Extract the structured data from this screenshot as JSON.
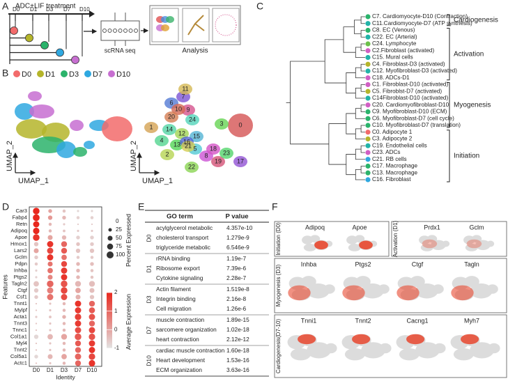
{
  "panel_labels": [
    "A",
    "B",
    "C",
    "D",
    "E",
    "F"
  ],
  "panel_a": {
    "title": "ADC+LIF treatment",
    "days": [
      {
        "label": "D0",
        "color": "#f26b6b"
      },
      {
        "label": "D1",
        "color": "#b5b52a"
      },
      {
        "label": "D3",
        "color": "#2bb36b"
      },
      {
        "label": "D7",
        "color": "#2fa8e0"
      },
      {
        "label": "D10",
        "color": "#c76fd1"
      }
    ],
    "steps": [
      "scRNA seq",
      "Analysis"
    ]
  },
  "panel_b": {
    "legend": [
      {
        "label": "D0",
        "color": "#f26b6b"
      },
      {
        "label": "D1",
        "color": "#b5b52a"
      },
      {
        "label": "D3",
        "color": "#2bb36b"
      },
      {
        "label": "D7",
        "color": "#2fa8e0"
      },
      {
        "label": "D10",
        "color": "#c76fd1"
      }
    ],
    "x_label": "UMAP_1",
    "y_label": "UMAP_2",
    "clusters": [
      "0",
      "1",
      "2",
      "3",
      "4",
      "5",
      "6",
      "7",
      "8",
      "9",
      "10",
      "11",
      "12",
      "13",
      "14",
      "15",
      "16",
      "17",
      "18",
      "19",
      "20",
      "21",
      "22",
      "23",
      "24"
    ]
  },
  "panel_c": {
    "groups": [
      {
        "label": "Cardiogenesis",
        "leaves": [
          {
            "label": "C7. Cardiomyocyte-D10 (Contraction)",
            "color": "#2bb36b"
          },
          {
            "label": "C11.Cardiomyocyte-D7 (ATP synthesis)",
            "color": "#22b3a8"
          }
        ]
      },
      {
        "label": "Activation",
        "leaves": [
          {
            "label": "C8. EC (Venous)",
            "color": "#2bb36b"
          },
          {
            "label": "C22. EC (Arterial)",
            "color": "#22b3a8"
          },
          {
            "label": "C24. Lymphocyte",
            "color": "#6cc04a"
          },
          {
            "label": "C2.Fibroblast (activated)",
            "color": "#d15fc4"
          },
          {
            "label": "C15. Mural cells",
            "color": "#22b3a8"
          },
          {
            "label": "C4. Fibroblast-D3 (activated)",
            "color": "#b5b52a"
          },
          {
            "label": "C12. Myofibroblast-D3 (activated)",
            "color": "#22b3a8"
          },
          {
            "label": "C18. ADCs-D1",
            "color": "#d15fc4"
          }
        ]
      },
      {
        "label": "Myogenesis",
        "leaves": [
          {
            "label": "C1. Fibroblast-D10 (activated)",
            "color": "#d15fc4"
          },
          {
            "label": "C5. Fibroblst-D7 (activated)",
            "color": "#b5b52a"
          },
          {
            "label": "C14Fibroblast-D10 (activated)",
            "color": "#22b3a8"
          },
          {
            "label": "C20. Cardiomyofibroblast-D10",
            "color": "#d15fc4"
          },
          {
            "label": "C9. Myofibroblast-D10 (ECM)",
            "color": "#2bb36b"
          },
          {
            "label": "C6. Myofibroblast-D7 (cell cycle)",
            "color": "#2bb36b"
          },
          {
            "label": "C10. Myofibroblast-D7 (translation)",
            "color": "#2bb36b"
          }
        ]
      },
      {
        "label": "Initiation",
        "leaves": [
          {
            "label": "C0. Adipocyte 1",
            "color": "#f26b6b"
          },
          {
            "label": "C3. Adipocyte 2",
            "color": "#b5b52a"
          },
          {
            "label": "C19. Endothelial cells",
            "color": "#22b3a8"
          },
          {
            "label": "C23. ADCs",
            "color": "#d15fc4"
          },
          {
            "label": "C21. RB cells",
            "color": "#2fa8e0"
          },
          {
            "label": "C17. Macrophage",
            "color": "#2bb36b"
          },
          {
            "label": "C13. Macrophage",
            "color": "#2bb36b"
          },
          {
            "label": "C16. Fibroblast",
            "color": "#2fa8e0"
          }
        ]
      }
    ]
  },
  "chart_data": {
    "type": "dot",
    "genes": [
      "Car3",
      "Fabp4",
      "Retn",
      "Adipoq",
      "Apoe",
      "Hmox1",
      "Lars2",
      "Gclm",
      "Pdpn",
      "Inhba",
      "Ptgs2",
      "Tagln2",
      "Ctgf",
      "Csf1",
      "Tnnt1",
      "Mylpf",
      "Acta1",
      "Tnnt3",
      "Tnnc1",
      "Col1a1",
      "Myl4",
      "Tnnt2",
      "Col5a1",
      "Actc1"
    ],
    "categories": [
      "D0",
      "D1",
      "D3",
      "D7",
      "D10"
    ],
    "percent": [
      [
        90,
        30,
        20,
        10,
        10
      ],
      [
        95,
        40,
        30,
        20,
        20
      ],
      [
        80,
        20,
        10,
        5,
        5
      ],
      [
        85,
        20,
        15,
        10,
        10
      ],
      [
        90,
        50,
        40,
        30,
        30
      ],
      [
        40,
        80,
        70,
        30,
        30
      ],
      [
        50,
        80,
        70,
        40,
        40
      ],
      [
        30,
        80,
        60,
        20,
        20
      ],
      [
        20,
        50,
        70,
        30,
        30
      ],
      [
        10,
        60,
        80,
        30,
        20
      ],
      [
        10,
        50,
        80,
        30,
        20
      ],
      [
        60,
        90,
        90,
        70,
        70
      ],
      [
        40,
        80,
        90,
        60,
        50
      ],
      [
        30,
        80,
        80,
        50,
        40
      ],
      [
        5,
        10,
        20,
        80,
        70
      ],
      [
        5,
        10,
        20,
        80,
        75
      ],
      [
        10,
        15,
        30,
        85,
        80
      ],
      [
        5,
        10,
        20,
        80,
        70
      ],
      [
        5,
        10,
        20,
        80,
        80
      ],
      [
        40,
        60,
        70,
        90,
        85
      ],
      [
        5,
        10,
        20,
        70,
        80
      ],
      [
        5,
        10,
        20,
        70,
        80
      ],
      [
        30,
        50,
        60,
        80,
        85
      ],
      [
        5,
        10,
        20,
        70,
        85
      ]
    ],
    "expression": [
      [
        2,
        0,
        -0.5,
        -0.8,
        -0.8
      ],
      [
        2,
        0.2,
        -0.3,
        -0.7,
        -0.7
      ],
      [
        2,
        -0.3,
        -0.6,
        -0.6,
        -0.6
      ],
      [
        2,
        -0.3,
        -0.5,
        -0.6,
        -0.6
      ],
      [
        1.8,
        0,
        -0.3,
        -0.7,
        -0.7
      ],
      [
        -0.5,
        1.8,
        1,
        -0.5,
        -0.6
      ],
      [
        0,
        1.5,
        1.2,
        -0.5,
        -0.5
      ],
      [
        -0.6,
        1.8,
        0.8,
        -0.6,
        -0.6
      ],
      [
        -0.6,
        0.8,
        1.5,
        -0.3,
        -0.4
      ],
      [
        -0.7,
        0.8,
        1.7,
        -0.3,
        -0.5
      ],
      [
        -0.7,
        0.5,
        1.8,
        -0.3,
        -0.5
      ],
      [
        -0.5,
        1,
        1.3,
        -0.3,
        -0.4
      ],
      [
        -0.6,
        0.6,
        1.5,
        0,
        -0.4
      ],
      [
        -0.6,
        0.8,
        1.4,
        -0.2,
        -0.5
      ],
      [
        -0.5,
        -0.5,
        -0.3,
        1.8,
        1
      ],
      [
        -0.5,
        -0.5,
        -0.3,
        1.7,
        1.2
      ],
      [
        -0.6,
        -0.5,
        -0.2,
        1.6,
        1.3
      ],
      [
        -0.5,
        -0.5,
        -0.3,
        1.7,
        1
      ],
      [
        -0.5,
        -0.5,
        -0.3,
        1.4,
        1.5
      ],
      [
        -0.8,
        -0.3,
        0,
        1.2,
        1.3
      ],
      [
        -0.5,
        -0.5,
        -0.3,
        1.2,
        1.7
      ],
      [
        -0.5,
        -0.5,
        -0.3,
        1,
        1.8
      ],
      [
        -0.8,
        -0.3,
        0,
        1,
        1.5
      ],
      [
        -0.5,
        -0.5,
        -0.3,
        1,
        1.8
      ]
    ],
    "x_label": "Identity",
    "y_label": "Features",
    "size_legend_title": "Percent Expressed",
    "size_ticks": [
      0,
      25,
      50,
      75,
      100
    ],
    "size_lim": [
      0,
      100
    ],
    "color_legend_title": "Average Expression",
    "color_ticks": [
      2,
      1,
      0,
      -1
    ],
    "color_lim": [
      -1,
      2
    ],
    "colors": [
      "#e3e3e3",
      "#e8281e"
    ]
  },
  "panel_e": {
    "headers": [
      "GO term",
      "P value"
    ],
    "groups": [
      {
        "day": "D0",
        "rows": [
          [
            "acylglycerol metabolic",
            "4.357e-10"
          ],
          [
            "cholesterol transport",
            "1.279e-9"
          ],
          [
            "triglyceride metabolic",
            "6.546e-9"
          ]
        ]
      },
      {
        "day": "D1",
        "rows": [
          [
            "rRNA binding",
            "1.19e-7"
          ],
          [
            "Ribosome export",
            "7.39e-6"
          ],
          [
            "Cytokine signaling",
            "2.28e-7"
          ]
        ]
      },
      {
        "day": "D3",
        "rows": [
          [
            "Actin filament",
            "1.519e-8"
          ],
          [
            "Integrin binding",
            "2.16e-8"
          ],
          [
            "Cell migration",
            "1.26e-6"
          ]
        ]
      },
      {
        "day": "D7",
        "rows": [
          [
            "muscle contraction",
            "1.89e-15"
          ],
          [
            "sarcomere organization",
            "1.02e-18"
          ],
          [
            "heart contraction",
            "2.12e-12"
          ]
        ]
      },
      {
        "day": "D10",
        "rows": [
          [
            "cardiac muscle contraction",
            "1.60e-18"
          ],
          [
            "Heart development",
            "1.53e-16"
          ],
          [
            "ECM organization",
            "3.63e-16"
          ]
        ]
      }
    ]
  },
  "panel_f": {
    "groups": [
      {
        "label": "Initiation (D0)",
        "genes": [
          "Adipoq",
          "Apoe"
        ]
      },
      {
        "label": "Activation (D1)",
        "genes": [
          "Prdx1",
          "Gclm"
        ]
      },
      {
        "label": "Myogenesis (D3)",
        "genes": [
          "Inhba",
          "Ptgs2",
          "Ctgf",
          "Tagln"
        ]
      },
      {
        "label": "Cardiogenesis(D7-10)",
        "genes": [
          "Tnni1",
          "Tnnt2",
          "Cacng1",
          "Myh7"
        ]
      }
    ]
  }
}
